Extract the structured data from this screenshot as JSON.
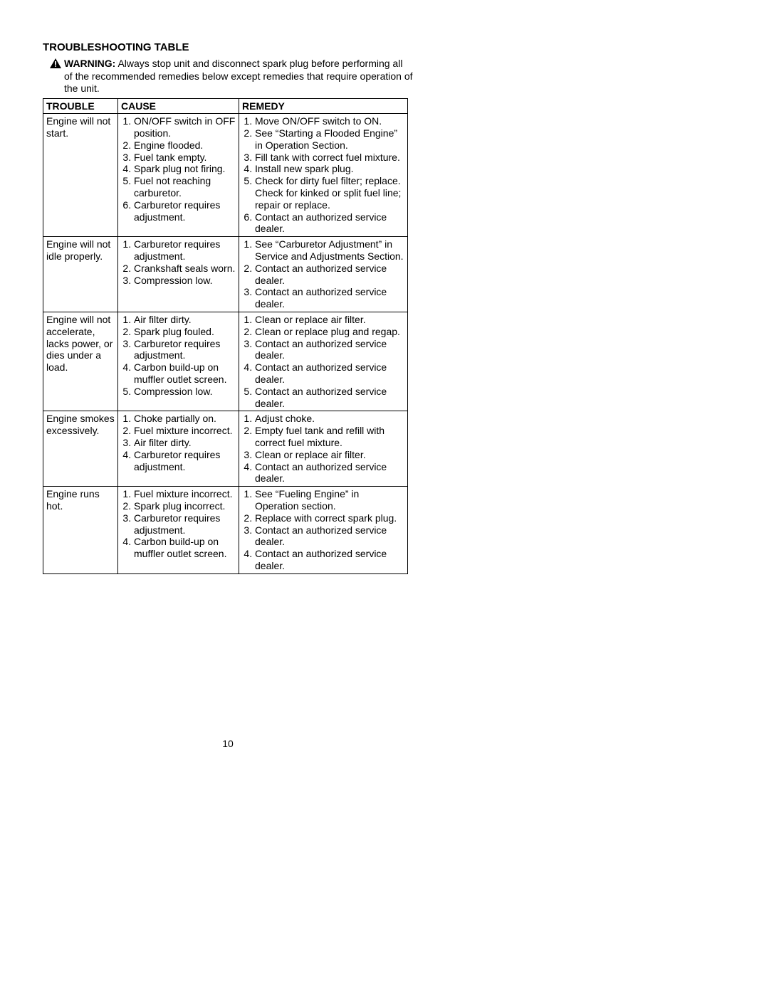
{
  "section_title": "TROUBLESHOOTING TABLE",
  "warning": {
    "label": "WARNING:",
    "text": " Always stop unit and disconnect spark plug before performing all of the recommended remedies below except remedies that require operation of the unit.",
    "icon_fill": "#000000",
    "icon_bang": "#ffffff"
  },
  "columns": [
    "TROUBLE",
    "CAUSE",
    "REMEDY"
  ],
  "rows": [
    {
      "trouble": "Engine will not start.",
      "causes": [
        "ON/OFF switch in OFF position.",
        "Engine flooded.",
        "Fuel tank empty.",
        "Spark plug not firing.",
        "Fuel not reaching carburetor.",
        "Carburetor requires adjustment."
      ],
      "remedies": [
        "Move ON/OFF switch to ON.",
        "See “Starting a Flooded Engine” in Operation Section.",
        "Fill tank with correct fuel mixture.",
        "Install new spark plug.",
        "Check for dirty fuel filter; replace. Check for kinked or split fuel line; repair or replace.",
        "Contact an authorized service dealer."
      ]
    },
    {
      "trouble": "Engine will not idle properly.",
      "causes": [
        "Carburetor requires adjustment.",
        "Crankshaft seals worn.",
        "Compression low."
      ],
      "remedies": [
        "See “Carburetor Adjustment” in Service and Adjustments Section.",
        "Contact an authorized service dealer.",
        "Contact an authorized service dealer."
      ]
    },
    {
      "trouble": "Engine will not accelerate, lacks power, or dies under a load.",
      "causes": [
        "Air filter dirty.",
        "Spark plug fouled.",
        "Carburetor requires adjustment.",
        "Carbon build-up on muffler outlet screen.",
        "Compression low."
      ],
      "remedies": [
        "Clean or replace air filter.",
        "Clean or replace plug and regap.",
        "Contact an authorized service dealer.",
        "Contact an authorized service dealer.",
        "Contact an authorized service dealer."
      ]
    },
    {
      "trouble": "Engine smokes excessively.",
      "causes": [
        "Choke partially on.",
        "Fuel mixture incorrect.",
        "Air filter dirty.",
        "Carburetor requires adjustment."
      ],
      "remedies": [
        "Adjust choke.",
        "Empty fuel tank and refill with correct fuel mixture.",
        "Clean or replace air filter.",
        "Contact an authorized service dealer."
      ]
    },
    {
      "trouble": "Engine runs hot.",
      "causes": [
        "Fuel mixture incorrect.",
        "Spark plug incorrect.",
        "Carburetor requires adjustment.",
        "Carbon build-up on muffler outlet screen."
      ],
      "remedies": [
        "See “Fueling Engine” in Operation section.",
        "Replace with correct spark plug.",
        "Contact an authorized service dealer.",
        "Contact an authorized service dealer."
      ]
    }
  ],
  "page_number": "10",
  "style": {
    "background": "#ffffff",
    "text_color": "#000000",
    "border_color": "#000000"
  }
}
